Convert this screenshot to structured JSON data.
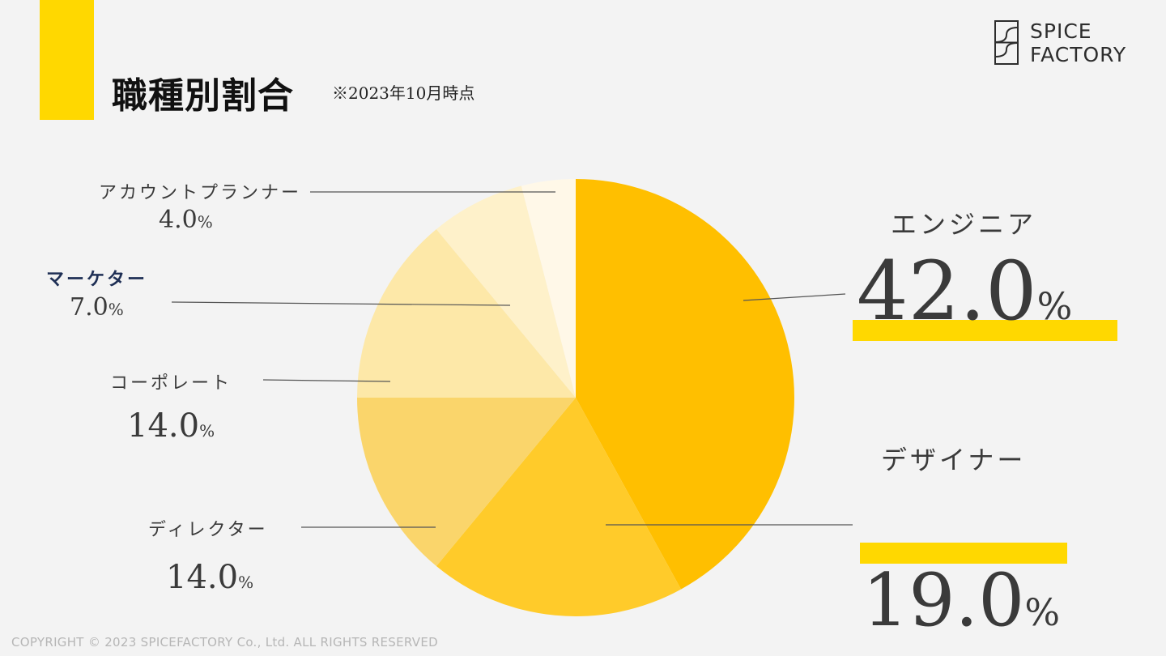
{
  "title": "職種別割合",
  "subtitle": "※2023年10月時点",
  "logo": {
    "line1": "SPICE",
    "line2": "FACTORY"
  },
  "footer": "COPYRIGHT © 2023 SPICEFACTORY Co., Ltd.   ALL RIGHTS RESERVED",
  "colors": {
    "accent": "#ffd800"
  },
  "chart_data": {
    "type": "pie",
    "unit": "%",
    "slices": [
      {
        "label": "エンジニア",
        "value": 42.0,
        "color": "#ffbf00"
      },
      {
        "label": "デザイナー",
        "value": 19.0,
        "color": "#ffcb2a"
      },
      {
        "label": "ディレクター",
        "value": 14.0,
        "color": "#fad56b"
      },
      {
        "label": "コーポレート",
        "value": 14.0,
        "color": "#fde8a8"
      },
      {
        "label": "マーケター",
        "value": 7.0,
        "color": "#fef1ca"
      },
      {
        "label": "アカウントプランナー",
        "value": 4.0,
        "color": "#fff8e8"
      }
    ],
    "labels": {
      "engineer": {
        "name": "エンジニア",
        "value": "42.0",
        "unit": "%"
      },
      "designer": {
        "name": "デザイナー",
        "value": "19.0",
        "unit": "%"
      },
      "director": {
        "name": "ディレクター",
        "value": "14.0",
        "unit": "%"
      },
      "corporate": {
        "name": "コーポレート",
        "value": "14.0",
        "unit": "%"
      },
      "marketer": {
        "name": "マーケター",
        "value": "7.0",
        "unit": "%"
      },
      "account_planner": {
        "name": "アカウントプランナー",
        "value": "4.0",
        "unit": "%"
      }
    }
  }
}
